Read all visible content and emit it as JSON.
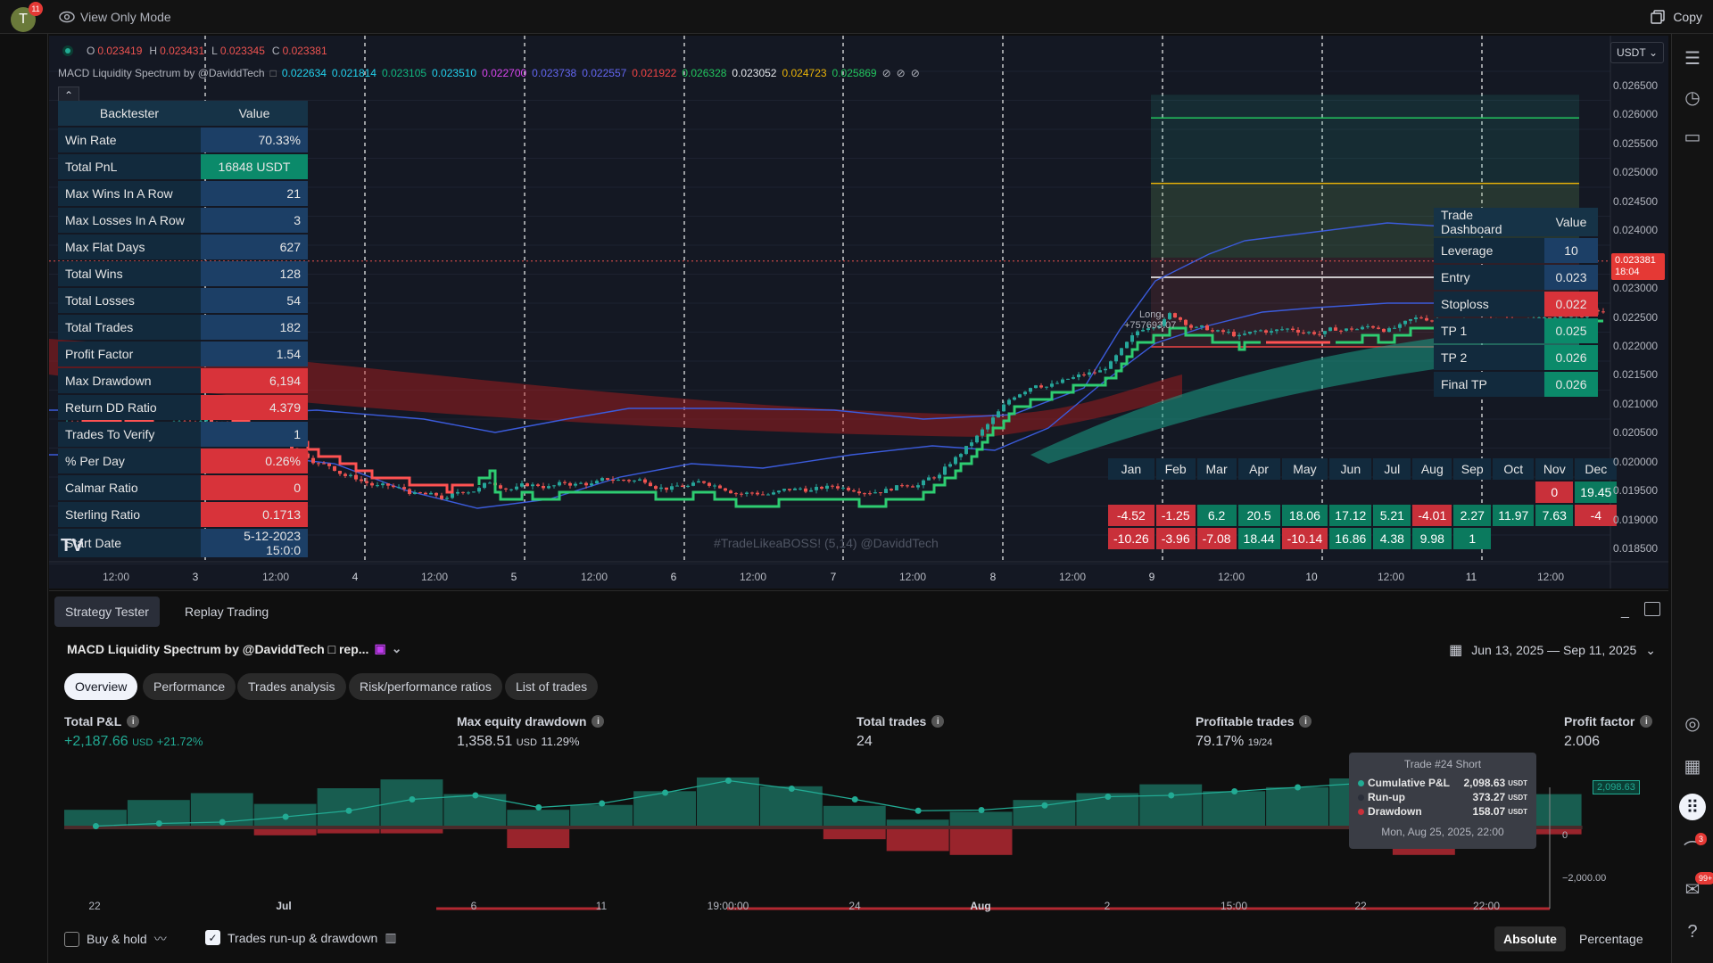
{
  "topbar": {
    "avatar_letter": "T",
    "avatar_badge": "11",
    "view_mode": "View Only Mode",
    "copy": "Copy"
  },
  "chart": {
    "ohlc": {
      "o_label": "O",
      "o": "0.023419",
      "h_label": "H",
      "h": "0.023431",
      "l_label": "L",
      "l": "0.023345",
      "c_label": "C",
      "c": "0.023381"
    },
    "indicator_name": "MACD Liquidity Spectrum by @DaviddTech",
    "indicator_values": [
      {
        "v": "0.022634",
        "color": "#22d3ee"
      },
      {
        "v": "0.021814",
        "color": "#22d3ee"
      },
      {
        "v": "0.023105",
        "color": "#10b981"
      },
      {
        "v": "0.023510",
        "color": "#22d3ee"
      },
      {
        "v": "0.022700",
        "color": "#d946ef"
      },
      {
        "v": "0.023738",
        "color": "#6366f1"
      },
      {
        "v": "0.022557",
        "color": "#6366f1"
      },
      {
        "v": "0.021922",
        "color": "#ef4444"
      },
      {
        "v": "0.026328",
        "color": "#22c55e"
      },
      {
        "v": "0.023052",
        "color": "#e5e7eb"
      },
      {
        "v": "0.024723",
        "color": "#eab308"
      },
      {
        "v": "0.025869",
        "color": "#22c55e"
      }
    ],
    "currency": "USDT",
    "watermark": "#TradeLikeaBOSS! (5,14) @DaviddTech",
    "last_price": "0.023381",
    "last_time": "18:04",
    "price_axis": [
      "0.026500",
      "0.026000",
      "0.025500",
      "0.025000",
      "0.024500",
      "0.024000",
      "0.023000",
      "0.022500",
      "0.022000",
      "0.021500",
      "0.021000",
      "0.020500",
      "0.020000",
      "0.019500",
      "0.019000",
      "0.018500"
    ],
    "time_axis": [
      "12:00",
      "3",
      "12:00",
      "4",
      "12:00",
      "5",
      "12:00",
      "6",
      "12:00",
      "7",
      "12:00",
      "8",
      "12:00",
      "9",
      "12:00",
      "10",
      "12:00",
      "11",
      "12:00"
    ],
    "trade_label": "Long",
    "trade_value": "+757693.07"
  },
  "backtester": {
    "header": [
      "Backtester",
      "Value"
    ],
    "rows": [
      {
        "label": "Win Rate",
        "value": "70.33%",
        "style": "blue"
      },
      {
        "label": "Total PnL",
        "value": "16848 USDT",
        "style": "green"
      },
      {
        "label": "Max Wins In A Row",
        "value": "21",
        "style": "blue"
      },
      {
        "label": "Max Losses In A Row",
        "value": "3",
        "style": "blue"
      },
      {
        "label": "Max Flat Days",
        "value": "627",
        "style": "blue"
      },
      {
        "label": "Total Wins",
        "value": "128",
        "style": "blue"
      },
      {
        "label": "Total Losses",
        "value": "54",
        "style": "blue"
      },
      {
        "label": "Total Trades",
        "value": "182",
        "style": "blue"
      },
      {
        "label": "Profit Factor",
        "value": "1.54",
        "style": "blue"
      },
      {
        "label": "Max Drawdown",
        "value": "6,194",
        "style": "red"
      },
      {
        "label": "Return DD Ratio",
        "value": "4.379",
        "style": "red"
      },
      {
        "label": "Trades To Verify",
        "value": "1",
        "style": "blue"
      },
      {
        "label": "% Per Day",
        "value": "0.26%",
        "style": "red"
      },
      {
        "label": "Calmar Ratio",
        "value": "0",
        "style": "red"
      },
      {
        "label": "Sterling Ratio",
        "value": "0.1713",
        "style": "red"
      },
      {
        "label": "Start Date",
        "value": "5-12-2023 15:0:0",
        "style": "blue"
      }
    ]
  },
  "dashboard": {
    "header": [
      "Trade Dashboard",
      "Value"
    ],
    "rows": [
      {
        "label": "Leverage",
        "value": "10",
        "style": "blue"
      },
      {
        "label": "Entry",
        "value": "0.023",
        "style": "blue"
      },
      {
        "label": "Stoploss",
        "value": "0.022",
        "style": "red"
      },
      {
        "label": "TP 1",
        "value": "0.025",
        "style": "green"
      },
      {
        "label": "TP 2",
        "value": "0.026",
        "style": "green"
      },
      {
        "label": "Final TP",
        "value": "0.026",
        "style": "green"
      }
    ]
  },
  "months": {
    "header": [
      "Jan",
      "Feb",
      "Mar",
      "Apr",
      "May",
      "Jun",
      "Jul",
      "Aug",
      "Sep",
      "Oct",
      "Nov",
      "Dec"
    ],
    "rows": [
      [
        "",
        "",
        "",
        "",
        "",
        "",
        "",
        "",
        "",
        "",
        "0",
        "19.45"
      ],
      [
        "-4.52",
        "-1.25",
        "6.2",
        "20.5",
        "18.06",
        "17.12",
        "5.21",
        "-4.01",
        "2.27",
        "11.97",
        "7.63",
        "-4"
      ],
      [
        "-10.26",
        "-3.96",
        "-7.08",
        "18.44",
        "-10.14",
        "16.86",
        "4.38",
        "9.98",
        "1",
        "",
        "",
        ""
      ]
    ]
  },
  "panel": {
    "tabs": [
      "Strategy Tester",
      "Replay Trading"
    ],
    "strategy_name": "MACD Liquidity Spectrum by @DaviddTech □ rep...",
    "date_range": "Jun 13, 2025 — Sep 11, 2025",
    "subtabs": [
      "Overview",
      "Performance",
      "Trades analysis",
      "Risk/performance ratios",
      "List of trades"
    ],
    "metrics": [
      {
        "title": "Total P&L",
        "value": "+2,187.66",
        "unit": "USD",
        "extra": "+21.72%"
      },
      {
        "title": "Max equity drawdown",
        "value": "1,358.51",
        "unit": "USD",
        "extra": "11.29%"
      },
      {
        "title": "Total trades",
        "value": "24",
        "unit": "",
        "extra": ""
      },
      {
        "title": "Profitable trades",
        "value": "79.17%",
        "unit": "19/24",
        "extra": ""
      },
      {
        "title": "Profit factor",
        "value": "2.006",
        "unit": "",
        "extra": ""
      }
    ],
    "x_labels": [
      "22",
      "Jul",
      "6",
      "11",
      "19:00:00",
      "24",
      "Aug",
      "2",
      "15:00",
      "22",
      "22:00"
    ],
    "y_labels": [
      "2,098.63",
      "0",
      "−2,000.00"
    ],
    "tooltip": {
      "title": "Trade #24 Short",
      "rows": [
        {
          "label": "Cumulative P&L",
          "value": "2,098.63",
          "unit": "USDT"
        },
        {
          "label": "Run-up",
          "value": "373.27",
          "unit": "USDT"
        },
        {
          "label": "Drawdown",
          "value": "158.07",
          "unit": "USDT"
        }
      ],
      "date": "Mon, Aug 25, 2025, 22:00"
    },
    "checkboxes": [
      {
        "label": "Buy & hold",
        "checked": false
      },
      {
        "label": "Trades run-up & drawdown",
        "checked": true
      }
    ],
    "modes": [
      "Absolute",
      "Percentage"
    ]
  },
  "equity": {
    "runup": [
      90,
      140,
      175,
      120,
      200,
      245,
      170,
      90,
      115,
      185,
      255,
      210,
      110,
      40,
      80,
      140,
      175,
      220,
      185,
      205,
      250,
      50,
      120,
      170
    ],
    "drawdown": [
      0,
      0,
      0,
      40,
      30,
      30,
      0,
      105,
      0,
      0,
      0,
      0,
      60,
      120,
      140,
      0,
      0,
      0,
      0,
      0,
      0,
      140,
      40,
      35
    ],
    "cumulative": [
      20,
      60,
      80,
      160,
      250,
      420,
      480,
      300,
      360,
      520,
      700,
      580,
      420,
      250,
      260,
      330,
      460,
      480,
      540,
      600,
      660,
      500,
      430,
      2098
    ]
  }
}
